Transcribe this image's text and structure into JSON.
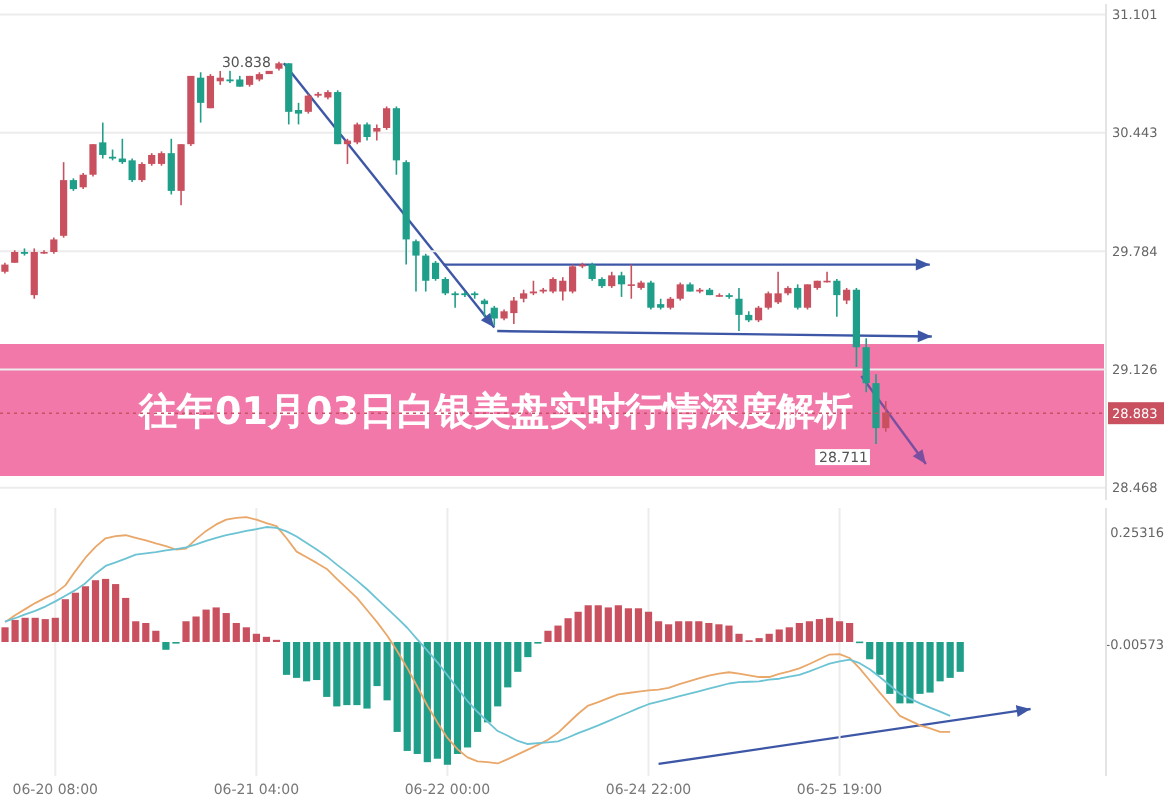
{
  "chart_data": [
    {
      "type": "candlestick",
      "title": "往年01月03日白银美盘实时行情深度解析",
      "categories": [
        null,
        null,
        null,
        null,
        null,
        null,
        null,
        null,
        null,
        null,
        null,
        null,
        null,
        null,
        null,
        null,
        null,
        null,
        null,
        null,
        null,
        null,
        null,
        null,
        null,
        null,
        null,
        null,
        null,
        null,
        null,
        null,
        null,
        null,
        null,
        null,
        null,
        null,
        null,
        null,
        null,
        null,
        null,
        null,
        null,
        null,
        null,
        null,
        null,
        null,
        null,
        null,
        null,
        null,
        null,
        null,
        null,
        null,
        null,
        null,
        null,
        null,
        null,
        null,
        null,
        null,
        null,
        null,
        null,
        null,
        null,
        null,
        null,
        null,
        null,
        null,
        null,
        null,
        null,
        null,
        null,
        null,
        null,
        null,
        null,
        null,
        null,
        null,
        null,
        null,
        null,
        null,
        null,
        null,
        null,
        null,
        null,
        null,
        null,
        null,
        null,
        null,
        null,
        null,
        null,
        null,
        null,
        null,
        null,
        null,
        null,
        null,
        null
      ],
      "ohlc": [
        [
          29.67,
          29.72,
          29.66,
          29.71
        ],
        [
          29.72,
          29.79,
          29.72,
          29.78
        ],
        [
          29.78,
          29.8,
          29.76,
          29.77
        ],
        [
          29.54,
          29.8,
          29.52,
          29.78
        ],
        [
          29.78,
          29.79,
          29.77,
          29.78
        ],
        [
          29.78,
          29.86,
          29.77,
          29.85
        ],
        [
          29.87,
          30.28,
          29.86,
          30.18
        ],
        [
          30.18,
          30.19,
          30.12,
          30.13
        ],
        [
          30.14,
          30.22,
          30.13,
          30.21
        ],
        [
          30.21,
          30.38,
          30.2,
          30.38
        ],
        [
          30.39,
          30.5,
          30.3,
          30.32
        ],
        [
          30.31,
          30.35,
          30.29,
          30.3
        ],
        [
          30.3,
          30.41,
          30.27,
          30.28
        ],
        [
          30.29,
          30.3,
          30.17,
          30.18
        ],
        [
          30.18,
          30.28,
          30.17,
          30.27
        ],
        [
          30.27,
          30.33,
          30.26,
          30.32
        ],
        [
          30.27,
          30.34,
          30.26,
          30.33
        ],
        [
          30.33,
          30.41,
          30.1,
          30.12
        ],
        [
          30.12,
          30.38,
          30.04,
          30.38
        ],
        [
          30.38,
          30.76,
          30.37,
          30.76
        ],
        [
          30.75,
          30.78,
          30.5,
          30.61
        ],
        [
          30.58,
          30.77,
          30.58,
          30.76
        ],
        [
          30.73,
          30.79,
          30.71,
          30.75
        ],
        [
          30.74,
          30.81,
          30.72,
          30.73
        ],
        [
          30.74,
          30.76,
          30.7,
          30.7
        ],
        [
          30.71,
          30.76,
          30.7,
          30.76
        ],
        [
          30.74,
          30.78,
          30.73,
          30.77
        ],
        [
          30.77,
          30.81,
          30.77,
          30.8
        ],
        [
          30.8,
          30.838,
          30.79,
          30.83
        ],
        [
          30.83,
          30.83,
          30.49,
          30.56
        ],
        [
          30.57,
          30.61,
          30.49,
          30.55
        ],
        [
          30.56,
          30.66,
          30.55,
          30.65
        ],
        [
          30.65,
          30.67,
          30.64,
          30.66
        ],
        [
          30.64,
          30.68,
          30.63,
          30.67
        ],
        [
          30.67,
          30.68,
          30.38,
          30.38
        ],
        [
          30.38,
          30.41,
          30.27,
          30.4
        ],
        [
          30.39,
          30.5,
          30.38,
          30.49
        ],
        [
          30.49,
          30.5,
          30.4,
          30.42
        ],
        [
          30.45,
          30.49,
          30.4,
          30.47
        ],
        [
          30.47,
          30.59,
          30.46,
          30.58
        ],
        [
          30.58,
          30.59,
          30.21,
          30.29
        ],
        [
          30.28,
          30.29,
          29.71,
          29.85
        ],
        [
          29.84,
          29.85,
          29.56,
          29.76
        ],
        [
          29.76,
          29.77,
          29.56,
          29.62
        ],
        [
          29.72,
          29.73,
          29.62,
          29.63
        ],
        [
          29.63,
          29.64,
          29.54,
          29.55
        ],
        [
          29.55,
          29.56,
          29.47,
          29.54
        ],
        [
          29.55,
          29.56,
          29.53,
          29.54
        ],
        [
          29.55,
          29.56,
          29.52,
          29.54
        ],
        [
          29.51,
          29.52,
          29.42,
          29.49
        ],
        [
          29.47,
          29.48,
          29.37,
          29.41
        ],
        [
          29.41,
          29.46,
          29.4,
          29.45
        ],
        [
          29.44,
          29.53,
          29.38,
          29.51
        ],
        [
          29.52,
          29.57,
          29.5,
          29.55
        ],
        [
          29.55,
          29.62,
          29.54,
          29.56
        ],
        [
          29.56,
          29.58,
          29.55,
          29.57
        ],
        [
          29.56,
          29.64,
          29.55,
          29.63
        ],
        [
          29.56,
          29.64,
          29.51,
          29.62
        ],
        [
          29.56,
          29.71,
          29.55,
          29.7
        ],
        [
          29.7,
          29.72,
          29.69,
          29.71
        ],
        [
          29.71,
          29.72,
          29.62,
          29.63
        ],
        [
          29.63,
          29.64,
          29.58,
          29.59
        ],
        [
          29.59,
          29.67,
          29.58,
          29.65
        ],
        [
          29.65,
          29.67,
          29.53,
          29.6
        ],
        [
          29.6,
          29.71,
          29.52,
          29.6
        ],
        [
          29.58,
          29.62,
          29.57,
          29.61
        ],
        [
          29.61,
          29.62,
          29.46,
          29.47
        ],
        [
          29.49,
          29.52,
          29.46,
          29.47
        ],
        [
          29.47,
          29.53,
          29.46,
          29.52
        ],
        [
          29.52,
          29.61,
          29.51,
          29.6
        ],
        [
          29.6,
          29.61,
          29.56,
          29.56
        ],
        [
          29.56,
          29.58,
          29.55,
          29.57
        ],
        [
          29.57,
          29.58,
          29.54,
          29.54
        ],
        [
          29.54,
          29.55,
          29.53,
          29.54
        ],
        [
          29.54,
          29.55,
          29.52,
          29.53
        ],
        [
          29.52,
          29.58,
          29.34,
          29.43
        ],
        [
          29.43,
          29.45,
          29.39,
          29.4
        ],
        [
          29.4,
          29.48,
          29.39,
          29.47
        ],
        [
          29.47,
          29.56,
          29.46,
          29.55
        ],
        [
          29.5,
          29.67,
          29.49,
          29.55
        ],
        [
          29.55,
          29.59,
          29.54,
          29.58
        ],
        [
          29.58,
          29.6,
          29.46,
          29.47
        ],
        [
          29.47,
          29.6,
          29.46,
          29.6
        ],
        [
          29.58,
          29.62,
          29.57,
          29.62
        ],
        [
          29.62,
          29.67,
          29.61,
          29.62
        ],
        [
          29.62,
          29.63,
          29.42,
          29.54
        ],
        [
          29.51,
          29.58,
          29.49,
          29.57
        ],
        [
          29.57,
          29.58,
          29.14,
          29.25
        ],
        [
          29.25,
          29.3,
          29.0,
          29.05
        ],
        [
          29.05,
          29.1,
          28.711,
          28.8
        ],
        [
          28.8,
          28.95,
          28.78,
          28.883
        ],
        null,
        null,
        null,
        null,
        null,
        null,
        null,
        null,
        null,
        null,
        null,
        null,
        null,
        null,
        null,
        null,
        null,
        null,
        null,
        null,
        null,
        null
      ],
      "colors": [
        "#c9515f",
        "#c9515f",
        "#1f9e89",
        "#c9515f",
        "#c9515f",
        "#c9515f",
        "#c9515f",
        "#1f9e89",
        "#c9515f",
        "#c9515f",
        "#1f9e89",
        "#1f9e89",
        "#1f9e89",
        "#1f9e89",
        "#c9515f",
        "#c9515f",
        "#c9515f",
        "#1f9e89",
        "#c9515f",
        "#c9515f",
        "#1f9e89",
        "#c9515f",
        "#c9515f",
        "#1f9e89",
        "#1f9e89",
        "#c9515f",
        "#c9515f",
        "#c9515f",
        "#c9515f",
        "#1f9e89",
        "#1f9e89",
        "#c9515f",
        "#c9515f",
        "#c9515f",
        "#1f9e89",
        "#c9515f",
        "#c9515f",
        "#1f9e89",
        "#c9515f",
        "#c9515f",
        "#1f9e89",
        "#1f9e89",
        "#1f9e89",
        "#1f9e89",
        "#1f9e89",
        "#1f9e89",
        "#1f9e89",
        "#1f9e89",
        "#1f9e89",
        "#1f9e89",
        "#1f9e89",
        "#c9515f",
        "#c9515f",
        "#c9515f",
        "#c9515f",
        "#c9515f",
        "#c9515f",
        "#c9515f",
        "#c9515f",
        "#c9515f",
        "#1f9e89",
        "#1f9e89",
        "#c9515f",
        "#1f9e89",
        "#c9515f",
        "#c9515f",
        "#1f9e89",
        "#1f9e89",
        "#c9515f",
        "#c9515f",
        "#1f9e89",
        "#c9515f",
        "#1f9e89",
        "#c9515f",
        "#1f9e89",
        "#1f9e89",
        "#1f9e89",
        "#c9515f",
        "#c9515f",
        "#c9515f",
        "#c9515f",
        "#1f9e89",
        "#c9515f",
        "#c9515f",
        "#c9515f",
        "#1f9e89",
        "#c9515f",
        "#1f9e89",
        "#1f9e89",
        "#1f9e89",
        "#c9515f",
        null,
        null,
        null,
        null,
        null,
        null,
        null,
        null,
        null,
        null,
        null,
        null,
        null,
        null,
        null,
        null,
        null,
        null,
        null,
        null,
        null,
        null
      ],
      "ylim": [
        28.4,
        31.16
      ],
      "yticks": [
        31.101,
        30.443,
        29.784,
        29.126,
        28.468
      ],
      "tick_labels": "y",
      "grid": true,
      "ref_lines": [
        {
          "axis": "y",
          "value": 28.883,
          "label": "28.883",
          "color": "#c9515f",
          "line_style": "dotted"
        }
      ],
      "annotations": [
        "30.838",
        "28.711"
      ]
    },
    {
      "type": "bar",
      "ylim": [
        -0.31,
        0.31
      ],
      "yticks": [
        0.25316,
        -0.00573
      ],
      "grid": "x",
      "categories": [
        null,
        null,
        null,
        null,
        null,
        "06-20 08:00",
        null,
        null,
        null,
        null,
        null,
        null,
        null,
        null,
        null,
        null,
        null,
        null,
        null,
        null,
        null,
        null,
        null,
        null,
        null,
        "06-21 04:00",
        null,
        null,
        null,
        null,
        null,
        null,
        null,
        null,
        null,
        null,
        null,
        null,
        null,
        null,
        null,
        null,
        null,
        null,
        "06-22 00:00",
        null,
        null,
        null,
        null,
        null,
        null,
        null,
        null,
        null,
        null,
        null,
        null,
        null,
        null,
        null,
        null,
        null,
        null,
        null,
        "06-24 22:00",
        null,
        null,
        null,
        null,
        null,
        null,
        null,
        null,
        null,
        null,
        null,
        null,
        null,
        null,
        null,
        null,
        null,
        null,
        "06-25 19:00",
        null,
        null,
        null,
        null,
        null,
        null,
        null,
        null,
        null,
        null,
        null,
        null,
        null,
        null,
        null,
        null,
        null,
        null,
        null,
        null,
        null,
        null,
        null,
        null,
        null,
        null
      ],
      "series": [
        {
          "type": "bar",
          "values": [
            0.034,
            0.051,
            0.056,
            0.056,
            0.053,
            0.056,
            0.099,
            0.114,
            0.129,
            0.143,
            0.146,
            0.134,
            0.102,
            0.048,
            0.044,
            0.026,
            -0.018,
            -0.003,
            0.048,
            0.059,
            0.075,
            0.08,
            0.067,
            0.044,
            0.034,
            0.019,
            0.012,
            0.005,
            -0.076,
            -0.083,
            -0.091,
            -0.088,
            -0.127,
            -0.149,
            -0.146,
            -0.146,
            -0.154,
            -0.102,
            -0.135,
            -0.208,
            -0.252,
            -0.259,
            -0.278,
            -0.27,
            -0.284,
            -0.259,
            -0.244,
            -0.208,
            -0.186,
            -0.149,
            -0.105,
            -0.069,
            -0.035,
            -0.003,
            0.026,
            0.038,
            0.055,
            0.07,
            0.085,
            0.085,
            0.08,
            0.085,
            0.078,
            0.078,
            0.07,
            0.048,
            0.041,
            0.048,
            0.048,
            0.048,
            0.044,
            0.041,
            0.038,
            0.019,
            0.004,
            0.009,
            0.019,
            0.029,
            0.034,
            0.044,
            0.048,
            0.053,
            0.056,
            0.048,
            0.044,
            0.001,
            -0.04,
            -0.076,
            -0.12,
            -0.142,
            -0.142,
            -0.12,
            -0.117,
            -0.091,
            -0.083,
            -0.069,
            null,
            null,
            null,
            null,
            null,
            null,
            null,
            null,
            null,
            null,
            null,
            null,
            null,
            null
          ],
          "colors": [
            "#c9515f",
            "#c9515f",
            "#c9515f",
            "#c9515f",
            "#c9515f",
            "#c9515f",
            "#c9515f",
            "#c9515f",
            "#c9515f",
            "#c9515f",
            "#c9515f",
            "#c9515f",
            "#c9515f",
            "#c9515f",
            "#c9515f",
            "#c9515f",
            "#1f9e89",
            "#1f9e89",
            "#c9515f",
            "#c9515f",
            "#c9515f",
            "#c9515f",
            "#c9515f",
            "#c9515f",
            "#c9515f",
            "#c9515f",
            "#c9515f",
            "#c9515f",
            "#1f9e89",
            "#1f9e89",
            "#1f9e89",
            "#1f9e89",
            "#1f9e89",
            "#1f9e89",
            "#1f9e89",
            "#1f9e89",
            "#1f9e89",
            "#1f9e89",
            "#1f9e89",
            "#1f9e89",
            "#1f9e89",
            "#1f9e89",
            "#1f9e89",
            "#1f9e89",
            "#1f9e89",
            "#1f9e89",
            "#1f9e89",
            "#1f9e89",
            "#1f9e89",
            "#1f9e89",
            "#1f9e89",
            "#1f9e89",
            "#1f9e89",
            "#1f9e89",
            "#c9515f",
            "#c9515f",
            "#c9515f",
            "#c9515f",
            "#c9515f",
            "#c9515f",
            "#c9515f",
            "#c9515f",
            "#c9515f",
            "#c9515f",
            "#c9515f",
            "#c9515f",
            "#c9515f",
            "#c9515f",
            "#c9515f",
            "#c9515f",
            "#c9515f",
            "#c9515f",
            "#c9515f",
            "#c9515f",
            "#c9515f",
            "#c9515f",
            "#c9515f",
            "#c9515f",
            "#c9515f",
            "#c9515f",
            "#c9515f",
            "#c9515f",
            "#c9515f",
            "#c9515f",
            "#c9515f",
            "#1f9e89",
            "#1f9e89",
            "#1f9e89",
            "#1f9e89",
            "#1f9e89",
            "#1f9e89",
            "#1f9e89",
            "#1f9e89",
            "#1f9e89",
            "#1f9e89",
            "#1f9e89",
            null,
            null,
            null,
            null,
            null,
            null,
            null,
            null,
            null,
            null,
            null,
            null,
            null,
            null
          ]
        },
        {
          "type": "line",
          "color": "#e9a769",
          "values": [
            0.046,
            0.062,
            0.076,
            0.09,
            0.102,
            0.113,
            0.131,
            0.164,
            0.195,
            0.22,
            0.24,
            0.245,
            0.247,
            0.241,
            0.235,
            0.228,
            0.222,
            0.214,
            0.216,
            0.238,
            0.257,
            0.272,
            0.283,
            0.287,
            0.289,
            0.283,
            0.275,
            0.268,
            0.24,
            0.209,
            0.196,
            0.183,
            0.169,
            0.146,
            0.124,
            0.102,
            0.074,
            0.046,
            0.015,
            -0.021,
            -0.06,
            -0.103,
            -0.147,
            -0.186,
            -0.222,
            -0.248,
            -0.267,
            -0.276,
            -0.278,
            -0.281,
            -0.271,
            -0.26,
            -0.249,
            -0.238,
            -0.226,
            -0.21,
            -0.188,
            -0.166,
            -0.147,
            -0.139,
            -0.13,
            -0.121,
            -0.118,
            -0.115,
            -0.112,
            -0.11,
            -0.106,
            -0.098,
            -0.091,
            -0.084,
            -0.078,
            -0.073,
            -0.07,
            -0.073,
            -0.077,
            -0.081,
            -0.081,
            -0.074,
            -0.068,
            -0.061,
            -0.051,
            -0.04,
            -0.029,
            -0.028,
            -0.037,
            -0.061,
            -0.089,
            -0.117,
            -0.144,
            -0.171,
            -0.182,
            -0.193,
            -0.2,
            -0.208,
            -0.208,
            null,
            null,
            null,
            null,
            null,
            null,
            null,
            null,
            null,
            null,
            null,
            null,
            null,
            null,
            null
          ]
        },
        {
          "type": "line",
          "color": "#6cc3d3",
          "values": [
            0.047,
            0.055,
            0.064,
            0.072,
            0.082,
            0.094,
            0.107,
            0.12,
            0.136,
            0.158,
            0.176,
            0.184,
            0.193,
            0.202,
            0.205,
            0.208,
            0.212,
            0.215,
            0.219,
            0.226,
            0.234,
            0.241,
            0.247,
            0.252,
            0.257,
            0.261,
            0.266,
            0.264,
            0.256,
            0.244,
            0.229,
            0.214,
            0.198,
            0.179,
            0.161,
            0.142,
            0.122,
            0.1,
            0.078,
            0.056,
            0.033,
            0.006,
            -0.02,
            -0.047,
            -0.077,
            -0.107,
            -0.137,
            -0.162,
            -0.184,
            -0.206,
            -0.217,
            -0.229,
            -0.236,
            -0.234,
            -0.232,
            -0.23,
            -0.221,
            -0.211,
            -0.202,
            -0.193,
            -0.183,
            -0.173,
            -0.163,
            -0.153,
            -0.144,
            -0.138,
            -0.132,
            -0.126,
            -0.12,
            -0.114,
            -0.108,
            -0.102,
            -0.096,
            -0.093,
            -0.092,
            -0.091,
            -0.087,
            -0.085,
            -0.08,
            -0.076,
            -0.068,
            -0.059,
            -0.05,
            -0.045,
            -0.041,
            -0.049,
            -0.063,
            -0.081,
            -0.1,
            -0.12,
            -0.131,
            -0.142,
            -0.152,
            -0.161,
            -0.171,
            null,
            null,
            null,
            null,
            null,
            null,
            null,
            null,
            null,
            null,
            null,
            null,
            null,
            null,
            null
          ]
        }
      ]
    }
  ]
}
